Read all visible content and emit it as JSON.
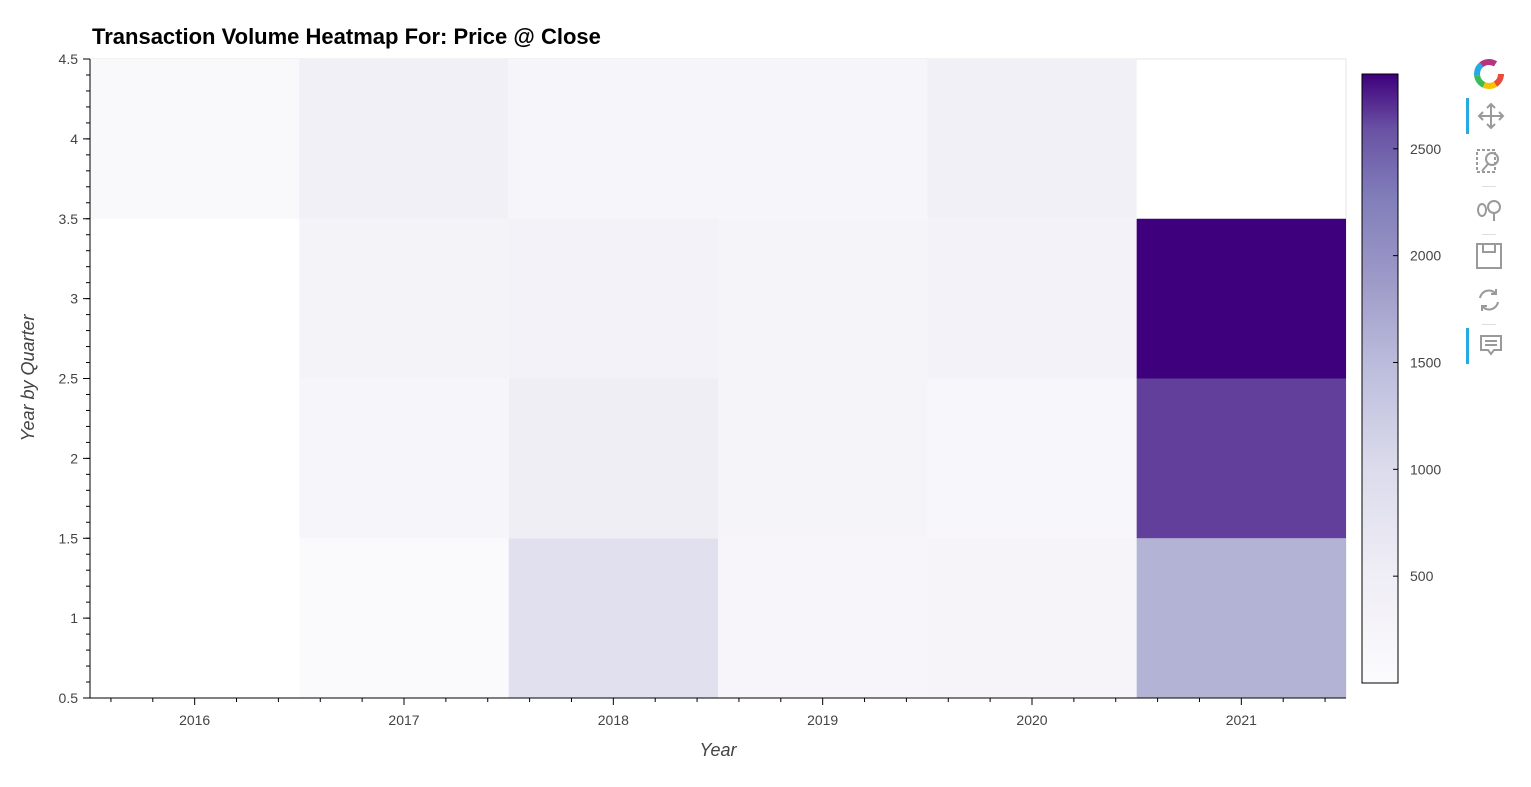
{
  "chart_data": {
    "type": "heatmap",
    "title": "Transaction Volume Heatmap For: Price @ Close",
    "xlabel": "Year",
    "ylabel": "Year by Quarter",
    "x_categories": [
      "2016",
      "2017",
      "2018",
      "2019",
      "2020",
      "2021"
    ],
    "y_categories": [
      1,
      2,
      3,
      4
    ],
    "ylim": [
      0.5,
      4.5
    ],
    "y_ticks": [
      "0.5",
      "1",
      "1.5",
      "2",
      "2.5",
      "3",
      "3.5",
      "4",
      "4.5"
    ],
    "values": [
      [
        null,
        80,
        870,
        210,
        250,
        1600
      ],
      [
        null,
        230,
        490,
        260,
        200,
        2650
      ],
      [
        null,
        310,
        340,
        260,
        340,
        2850
      ],
      [
        100,
        390,
        220,
        220,
        420,
        null
      ]
    ],
    "colorbar": {
      "palette": "Purples",
      "range": [
        0,
        2850
      ],
      "ticks": [
        "500",
        "1000",
        "1500",
        "2000",
        "2500"
      ],
      "tick_values": [
        500,
        1000,
        1500,
        2000,
        2500
      ]
    }
  },
  "toolbar": {
    "tools": [
      "logo-icon",
      "pan-icon",
      "box-zoom-icon",
      "wheel-zoom-icon",
      "save-icon",
      "reset-icon",
      "hover-icon"
    ]
  }
}
